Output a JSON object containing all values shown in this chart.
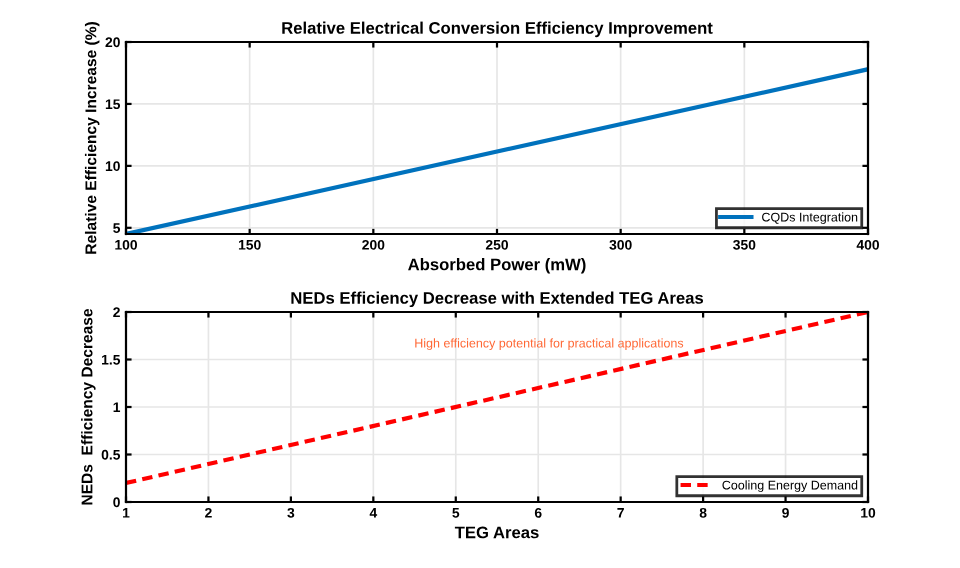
{
  "chart_data": [
    {
      "type": "line",
      "title": "Relative Electrical Conversion Efficiency Improvement",
      "xlabel": "Absorbed Power (mW)",
      "ylabel": "Relative Efficiency Increase (%)",
      "x": [
        100,
        400
      ],
      "series": [
        {
          "name": "CQDs Integration",
          "color": "#0072bd",
          "values": [
            4.5,
            17.8
          ],
          "line_style": "solid"
        }
      ],
      "xlim": [
        100,
        400
      ],
      "xticks": [
        100,
        150,
        200,
        250,
        300,
        350,
        400
      ],
      "ylim": [
        4.5,
        20
      ],
      "yticks": [
        5,
        10,
        15,
        20
      ],
      "grid": true,
      "legend": "bottom right"
    },
    {
      "type": "line",
      "title": "NEDs Efficiency Decrease with Extended TEG Areas",
      "xlabel": "TEG Areas",
      "ylabel": "NEDs  Efficiency Decrease",
      "x": [
        1,
        10
      ],
      "series": [
        {
          "name": "Cooling Energy Demand",
          "color": "#ff0000",
          "values": [
            0.2,
            2.0
          ],
          "line_style": "dashed"
        }
      ],
      "xlim": [
        1,
        10
      ],
      "xticks": [
        1,
        2,
        3,
        4,
        5,
        6,
        7,
        8,
        9,
        10
      ],
      "ylim": [
        0,
        2
      ],
      "yticks": [
        0,
        0.5,
        1,
        1.5,
        2
      ],
      "grid": true,
      "legend": "bottom right",
      "annotations": [
        "High efficiency potential for practical applications"
      ]
    }
  ]
}
